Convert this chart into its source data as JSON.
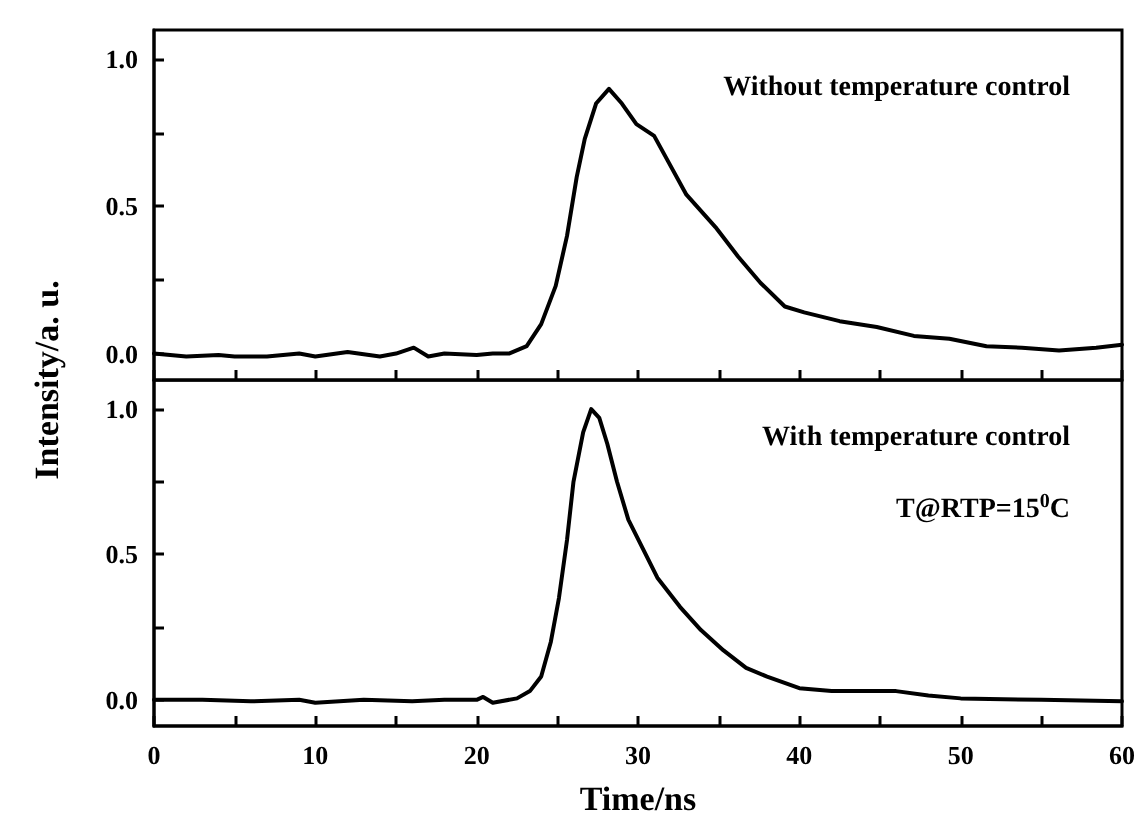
{
  "chart_data": [
    {
      "type": "line",
      "ylabel": "Intensity/a. u.",
      "annotations": [
        "Without temperature control"
      ],
      "tick_labels": "y",
      "marker": "none",
      "line_style": "solid",
      "xlim": [
        0,
        60
      ],
      "ylim": [
        -0.09,
        1.1
      ],
      "xticks": [
        0,
        {
          "value": 5,
          "label": null
        },
        10,
        {
          "value": 15,
          "label": null
        },
        20,
        {
          "value": 25,
          "label": null
        },
        30,
        {
          "value": 35,
          "label": null
        },
        40,
        {
          "value": 45,
          "label": null
        },
        50,
        {
          "value": 55,
          "label": null
        },
        60
      ],
      "yticks": [
        {
          "value": 0,
          "label": "0.0"
        },
        {
          "value": 0.25,
          "label": null
        },
        0.5,
        {
          "value": 0.75,
          "label": null
        },
        {
          "value": 1,
          "label": "1.0"
        }
      ],
      "series": [
        {
          "color": "#000000",
          "x": [
            0,
            2,
            4,
            5,
            7,
            9,
            10,
            12,
            14,
            15,
            16.1,
            17,
            18,
            20,
            21,
            22,
            23.1,
            24,
            24.9,
            25.6,
            26.2,
            26.7,
            27.4,
            28.2,
            29,
            29.9,
            31,
            31.9,
            33,
            34.8,
            36.2,
            37.6,
            39.1,
            40.3,
            42.5,
            44.8,
            47.1,
            49.3,
            51.6,
            53.8,
            56.1,
            58.4,
            60
          ],
          "values": [
            0.0,
            -0.01,
            -0.005,
            -0.01,
            -0.01,
            0.0,
            -0.01,
            0.005,
            -0.01,
            0.0,
            0.02,
            -0.01,
            0.0,
            -0.005,
            0.0,
            0.0,
            0.025,
            0.1,
            0.23,
            0.4,
            0.6,
            0.73,
            0.85,
            0.9,
            0.85,
            0.78,
            0.74,
            0.65,
            0.54,
            0.43,
            0.33,
            0.24,
            0.16,
            0.14,
            0.11,
            0.09,
            0.06,
            0.05,
            0.025,
            0.02,
            0.01,
            0.02,
            0.03
          ]
        }
      ]
    },
    {
      "type": "line",
      "xlabel": "Time/ns",
      "annotations": [
        "With temperature control",
        "T@RTP=15$^{0}$C"
      ],
      "marker": "none",
      "line_style": "solid",
      "xlim": [
        0,
        60
      ],
      "ylim": [
        -0.09,
        1.1
      ],
      "xticks": [
        0,
        {
          "value": 5,
          "label": null
        },
        10,
        {
          "value": 15,
          "label": null
        },
        20,
        {
          "value": 25,
          "label": null
        },
        30,
        {
          "value": 35,
          "label": null
        },
        40,
        {
          "value": 45,
          "label": null
        },
        50,
        {
          "value": 55,
          "label": null
        },
        60
      ],
      "yticks": [
        {
          "value": 0,
          "label": "0.0"
        },
        {
          "value": 0.25,
          "label": null
        },
        0.5,
        {
          "value": 0.75,
          "label": null
        },
        {
          "value": 1,
          "label": "1.0"
        }
      ],
      "series": [
        {
          "color": "#000000",
          "x": [
            0,
            3,
            6,
            9,
            10,
            13,
            16,
            18,
            20,
            20.4,
            21,
            22.5,
            23.3,
            24,
            24.6,
            25.1,
            25.6,
            26,
            26.6,
            27.1,
            27.6,
            28.1,
            28.7,
            29.4,
            30.3,
            31.2,
            32.6,
            33.9,
            35.3,
            36.7,
            38,
            40,
            42,
            44,
            46,
            48,
            50,
            55,
            60
          ],
          "values": [
            0.0,
            0.0,
            -0.005,
            0.0,
            -0.01,
            0.0,
            -0.005,
            0.0,
            0.0,
            0.01,
            -0.01,
            0.005,
            0.03,
            0.08,
            0.2,
            0.35,
            0.55,
            0.75,
            0.92,
            1.0,
            0.97,
            0.88,
            0.75,
            0.62,
            0.52,
            0.42,
            0.32,
            0.24,
            0.17,
            0.11,
            0.08,
            0.04,
            0.03,
            0.03,
            0.03,
            0.015,
            0.005,
            0.0,
            -0.005
          ]
        }
      ]
    }
  ]
}
